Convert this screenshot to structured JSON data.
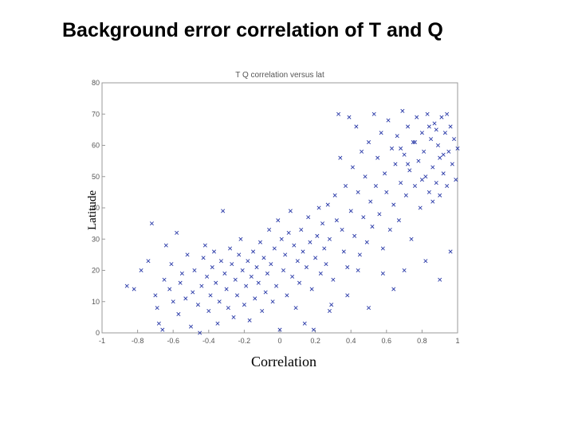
{
  "slide": {
    "title": "Background error correlation of T and Q"
  },
  "chart_data": {
    "type": "scatter",
    "title": "T Q correlation versus lat",
    "xlabel": "Correlation",
    "ylabel": "Latitude",
    "xlim": [
      -1,
      1
    ],
    "ylim": [
      0,
      80
    ],
    "xticks": [
      -1,
      -0.8,
      -0.6,
      -0.4,
      -0.2,
      0,
      0.2,
      0.4,
      0.6,
      0.8,
      1
    ],
    "xtick_labels": [
      "-1",
      "-0.8",
      "-0.6",
      "-0.4",
      "-0.2",
      "0",
      "0.2",
      "0.4",
      "0.6",
      "0.8",
      "1"
    ],
    "yticks": [
      0,
      10,
      20,
      30,
      40,
      50,
      60,
      70,
      80
    ],
    "ytick_labels": [
      "0",
      "10",
      "20",
      "30",
      "40",
      "50",
      "60",
      "70",
      "80"
    ],
    "grid": false,
    "marker": "x",
    "color": "#2a3aa8",
    "series": [
      {
        "points": [
          [
            -0.86,
            15
          ],
          [
            -0.82,
            14
          ],
          [
            -0.78,
            20
          ],
          [
            -0.74,
            23
          ],
          [
            -0.72,
            35
          ],
          [
            -0.7,
            12
          ],
          [
            -0.69,
            8
          ],
          [
            -0.68,
            3
          ],
          [
            -0.66,
            1
          ],
          [
            -0.65,
            17
          ],
          [
            -0.64,
            28
          ],
          [
            -0.62,
            14
          ],
          [
            -0.61,
            22
          ],
          [
            -0.6,
            10
          ],
          [
            -0.58,
            32
          ],
          [
            -0.57,
            6
          ],
          [
            -0.56,
            16
          ],
          [
            -0.55,
            19
          ],
          [
            -0.53,
            11
          ],
          [
            -0.52,
            25
          ],
          [
            -0.5,
            2
          ],
          [
            -0.49,
            13
          ],
          [
            -0.48,
            20
          ],
          [
            -0.46,
            9
          ],
          [
            -0.45,
            0
          ],
          [
            -0.44,
            15
          ],
          [
            -0.43,
            24
          ],
          [
            -0.42,
            28
          ],
          [
            -0.41,
            18
          ],
          [
            -0.4,
            7
          ],
          [
            -0.39,
            12
          ],
          [
            -0.38,
            21
          ],
          [
            -0.37,
            26
          ],
          [
            -0.36,
            16
          ],
          [
            -0.35,
            3
          ],
          [
            -0.34,
            10
          ],
          [
            -0.33,
            23
          ],
          [
            -0.32,
            39
          ],
          [
            -0.31,
            19
          ],
          [
            -0.3,
            14
          ],
          [
            -0.29,
            8
          ],
          [
            -0.28,
            27
          ],
          [
            -0.27,
            22
          ],
          [
            -0.26,
            5
          ],
          [
            -0.25,
            17
          ],
          [
            -0.24,
            12
          ],
          [
            -0.23,
            25
          ],
          [
            -0.22,
            30
          ],
          [
            -0.21,
            20
          ],
          [
            -0.2,
            9
          ],
          [
            -0.19,
            15
          ],
          [
            -0.18,
            23
          ],
          [
            -0.17,
            4
          ],
          [
            -0.16,
            18
          ],
          [
            -0.15,
            26
          ],
          [
            -0.14,
            11
          ],
          [
            -0.13,
            21
          ],
          [
            -0.12,
            16
          ],
          [
            -0.11,
            29
          ],
          [
            -0.1,
            7
          ],
          [
            -0.09,
            24
          ],
          [
            -0.08,
            13
          ],
          [
            -0.07,
            19
          ],
          [
            -0.06,
            33
          ],
          [
            -0.05,
            22
          ],
          [
            -0.04,
            10
          ],
          [
            -0.03,
            27
          ],
          [
            -0.02,
            15
          ],
          [
            -0.01,
            36
          ],
          [
            0.0,
            1
          ],
          [
            0.01,
            30
          ],
          [
            0.02,
            20
          ],
          [
            0.03,
            25
          ],
          [
            0.04,
            12
          ],
          [
            0.05,
            32
          ],
          [
            0.06,
            39
          ],
          [
            0.07,
            18
          ],
          [
            0.08,
            28
          ],
          [
            0.09,
            8
          ],
          [
            0.1,
            23
          ],
          [
            0.11,
            16
          ],
          [
            0.12,
            33
          ],
          [
            0.13,
            26
          ],
          [
            0.14,
            3
          ],
          [
            0.15,
            21
          ],
          [
            0.16,
            37
          ],
          [
            0.17,
            29
          ],
          [
            0.18,
            14
          ],
          [
            0.19,
            1
          ],
          [
            0.2,
            24
          ],
          [
            0.21,
            31
          ],
          [
            0.22,
            40
          ],
          [
            0.23,
            19
          ],
          [
            0.24,
            35
          ],
          [
            0.25,
            27
          ],
          [
            0.26,
            22
          ],
          [
            0.27,
            41
          ],
          [
            0.28,
            30
          ],
          [
            0.29,
            9
          ],
          [
            0.3,
            17
          ],
          [
            0.31,
            44
          ],
          [
            0.32,
            36
          ],
          [
            0.33,
            70
          ],
          [
            0.34,
            56
          ],
          [
            0.35,
            33
          ],
          [
            0.36,
            26
          ],
          [
            0.37,
            47
          ],
          [
            0.38,
            21
          ],
          [
            0.39,
            69
          ],
          [
            0.4,
            39
          ],
          [
            0.41,
            53
          ],
          [
            0.42,
            31
          ],
          [
            0.43,
            66
          ],
          [
            0.44,
            45
          ],
          [
            0.45,
            25
          ],
          [
            0.46,
            58
          ],
          [
            0.47,
            37
          ],
          [
            0.48,
            50
          ],
          [
            0.49,
            29
          ],
          [
            0.5,
            61
          ],
          [
            0.51,
            42
          ],
          [
            0.52,
            34
          ],
          [
            0.53,
            70
          ],
          [
            0.54,
            47
          ],
          [
            0.55,
            56
          ],
          [
            0.56,
            38
          ],
          [
            0.57,
            64
          ],
          [
            0.58,
            27
          ],
          [
            0.59,
            51
          ],
          [
            0.6,
            45
          ],
          [
            0.61,
            68
          ],
          [
            0.62,
            33
          ],
          [
            0.63,
            59
          ],
          [
            0.64,
            41
          ],
          [
            0.65,
            54
          ],
          [
            0.66,
            63
          ],
          [
            0.67,
            36
          ],
          [
            0.68,
            48
          ],
          [
            0.69,
            71
          ],
          [
            0.7,
            57
          ],
          [
            0.71,
            44
          ],
          [
            0.72,
            66
          ],
          [
            0.73,
            52
          ],
          [
            0.74,
            30
          ],
          [
            0.75,
            61
          ],
          [
            0.76,
            47
          ],
          [
            0.77,
            69
          ],
          [
            0.78,
            55
          ],
          [
            0.79,
            40
          ],
          [
            0.8,
            64
          ],
          [
            0.81,
            58
          ],
          [
            0.82,
            50
          ],
          [
            0.83,
            70
          ],
          [
            0.84,
            45
          ],
          [
            0.85,
            62
          ],
          [
            0.86,
            53
          ],
          [
            0.87,
            67
          ],
          [
            0.88,
            48
          ],
          [
            0.89,
            60
          ],
          [
            0.9,
            56
          ],
          [
            0.91,
            69
          ],
          [
            0.92,
            51
          ],
          [
            0.93,
            64
          ],
          [
            0.94,
            47
          ],
          [
            0.95,
            58
          ],
          [
            0.96,
            66
          ],
          [
            0.97,
            54
          ],
          [
            0.98,
            62
          ],
          [
            0.99,
            49
          ],
          [
            1.0,
            59
          ],
          [
            0.82,
            23
          ],
          [
            0.7,
            20
          ],
          [
            0.64,
            14
          ],
          [
            0.58,
            19
          ],
          [
            0.9,
            17
          ],
          [
            0.96,
            26
          ],
          [
            0.5,
            8
          ],
          [
            0.44,
            20
          ],
          [
            0.38,
            12
          ],
          [
            0.28,
            7
          ],
          [
            0.86,
            42
          ],
          [
            0.88,
            65
          ],
          [
            0.92,
            57
          ],
          [
            0.94,
            70
          ],
          [
            0.8,
            49
          ],
          [
            0.84,
            66
          ],
          [
            0.76,
            61
          ],
          [
            0.72,
            54
          ],
          [
            0.68,
            59
          ],
          [
            0.9,
            44
          ]
        ]
      }
    ]
  }
}
